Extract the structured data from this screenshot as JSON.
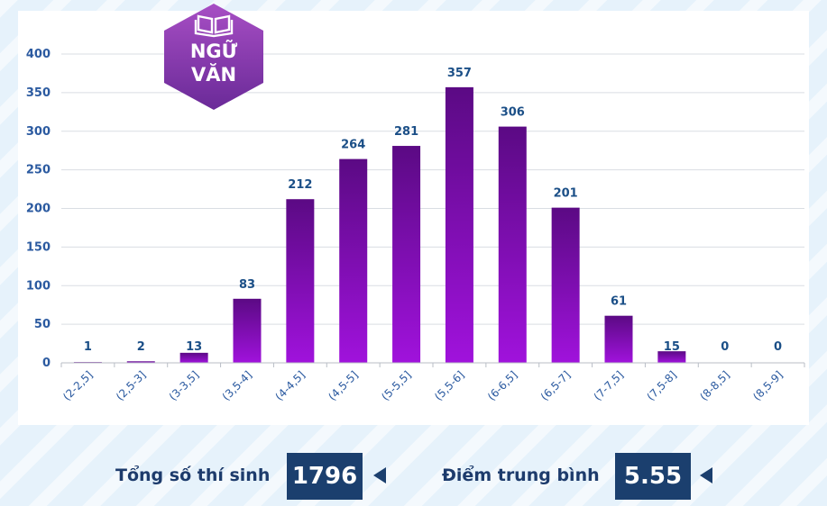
{
  "badge": {
    "line1": "NGỮ",
    "line2": "VĂN",
    "icon": "book-icon"
  },
  "chart_data": {
    "type": "bar",
    "categories": [
      "(2-2,5]",
      "(2,5-3]",
      "(3-3,5]",
      "(3,5-4]",
      "(4-4,5]",
      "(4,5-5]",
      "(5-5,5]",
      "(5,5-6]",
      "(6-6,5]",
      "(6,5-7]",
      "(7-7,5]",
      "(7,5-8]",
      "(8-8,5]",
      "(8,5-9]"
    ],
    "values": [
      1,
      2,
      13,
      83,
      212,
      264,
      281,
      357,
      306,
      201,
      61,
      15,
      0,
      0
    ],
    "ylim": [
      0,
      400
    ],
    "yticks": [
      0,
      50,
      100,
      150,
      200,
      250,
      300,
      350,
      400
    ],
    "grid": true,
    "colors": {
      "bar_top": "#5b0a84",
      "bar_bottom": "#a012dc",
      "label": "#1b4f87",
      "axis_text": "#2b5aa0"
    }
  },
  "footer": {
    "total_label": "Tổng số thí sinh",
    "total_value": "1796",
    "avg_label": "Điểm trung bình",
    "avg_value": "5.55"
  }
}
